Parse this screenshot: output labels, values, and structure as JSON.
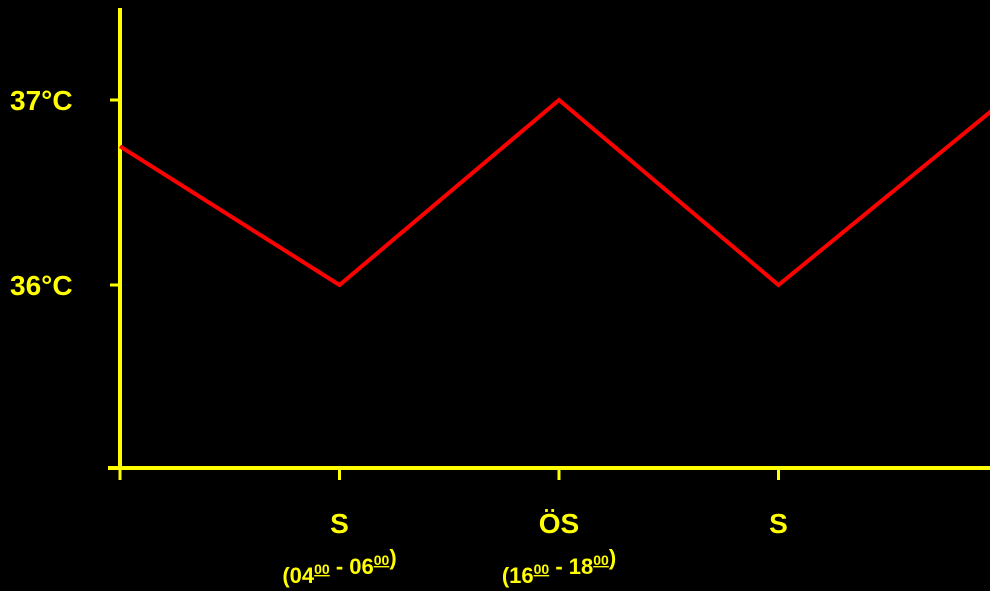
{
  "chart_data": {
    "type": "line",
    "title": "",
    "xlabel": "",
    "ylabel": "",
    "y_unit": "°C",
    "ylim": [
      35,
      37.5
    ],
    "y_ticks": [
      {
        "value": 36,
        "label": "36°C"
      },
      {
        "value": 37,
        "label": "37°C"
      }
    ],
    "x_tick_positions": [
      1,
      2,
      3
    ],
    "x_tick_labels": [
      {
        "x": 1,
        "label": "S"
      },
      {
        "x": 2,
        "label": "ÖS"
      },
      {
        "x": 3,
        "label": "S"
      }
    ],
    "time_ranges": [
      {
        "x": 1,
        "open": "(",
        "start_hour": "04",
        "start_min": "00",
        "separator": " - ",
        "end_hour": "06",
        "end_min": "00",
        "close": ")"
      },
      {
        "x": 2,
        "open": "(",
        "start_hour": "16",
        "start_min": "00",
        "separator": " - ",
        "end_hour": "18",
        "end_min": "00",
        "close": ")"
      }
    ],
    "xlim": [
      0,
      4
    ],
    "series": [
      {
        "color": "#ff0000",
        "x": [
          0,
          1,
          2,
          3,
          4
        ],
        "y": [
          36.75,
          36.0,
          37.0,
          36.0,
          36.97
        ]
      }
    ],
    "grid": false,
    "legend": "none",
    "axis_color": "#ffff00",
    "background": "#000000"
  }
}
